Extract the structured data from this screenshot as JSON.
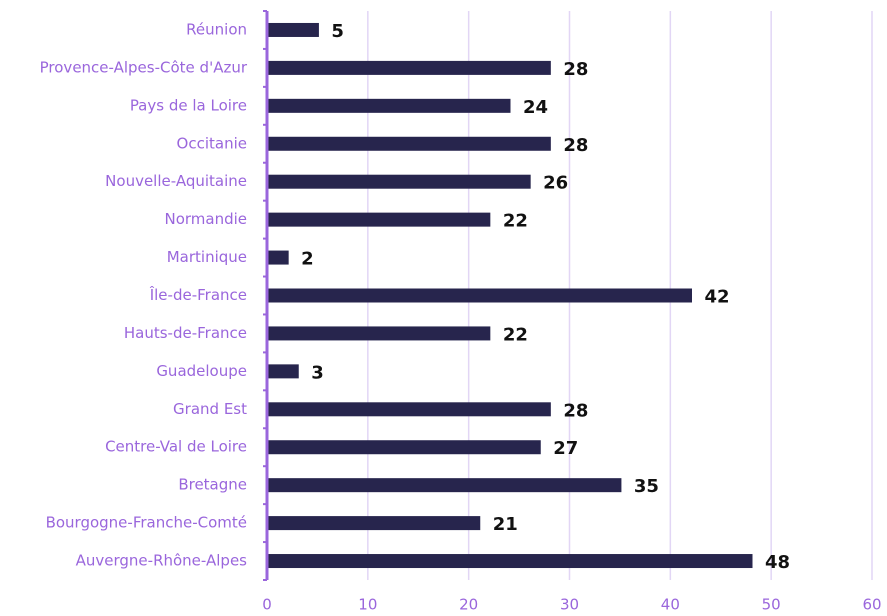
{
  "chart_data": {
    "type": "bar",
    "orientation": "horizontal",
    "categories": [
      "Réunion",
      "Provence-Alpes-Côte d'Azur",
      "Pays de la Loire",
      "Occitanie",
      "Nouvelle-Aquitaine",
      "Normandie",
      "Martinique",
      "Île-de-France",
      "Hauts-de-France",
      "Guadeloupe",
      "Grand Est",
      "Centre-Val de Loire",
      "Bretagne",
      "Bourgogne-Franche-Comté",
      "Auvergne-Rhône-Alpes"
    ],
    "values": [
      5,
      28,
      24,
      28,
      26,
      22,
      2,
      42,
      22,
      3,
      28,
      27,
      35,
      21,
      48
    ],
    "color": "#27254d",
    "xlim": [
      0,
      60
    ],
    "xticks": [
      0,
      10,
      20,
      30,
      40,
      50,
      60
    ],
    "grid": true
  }
}
